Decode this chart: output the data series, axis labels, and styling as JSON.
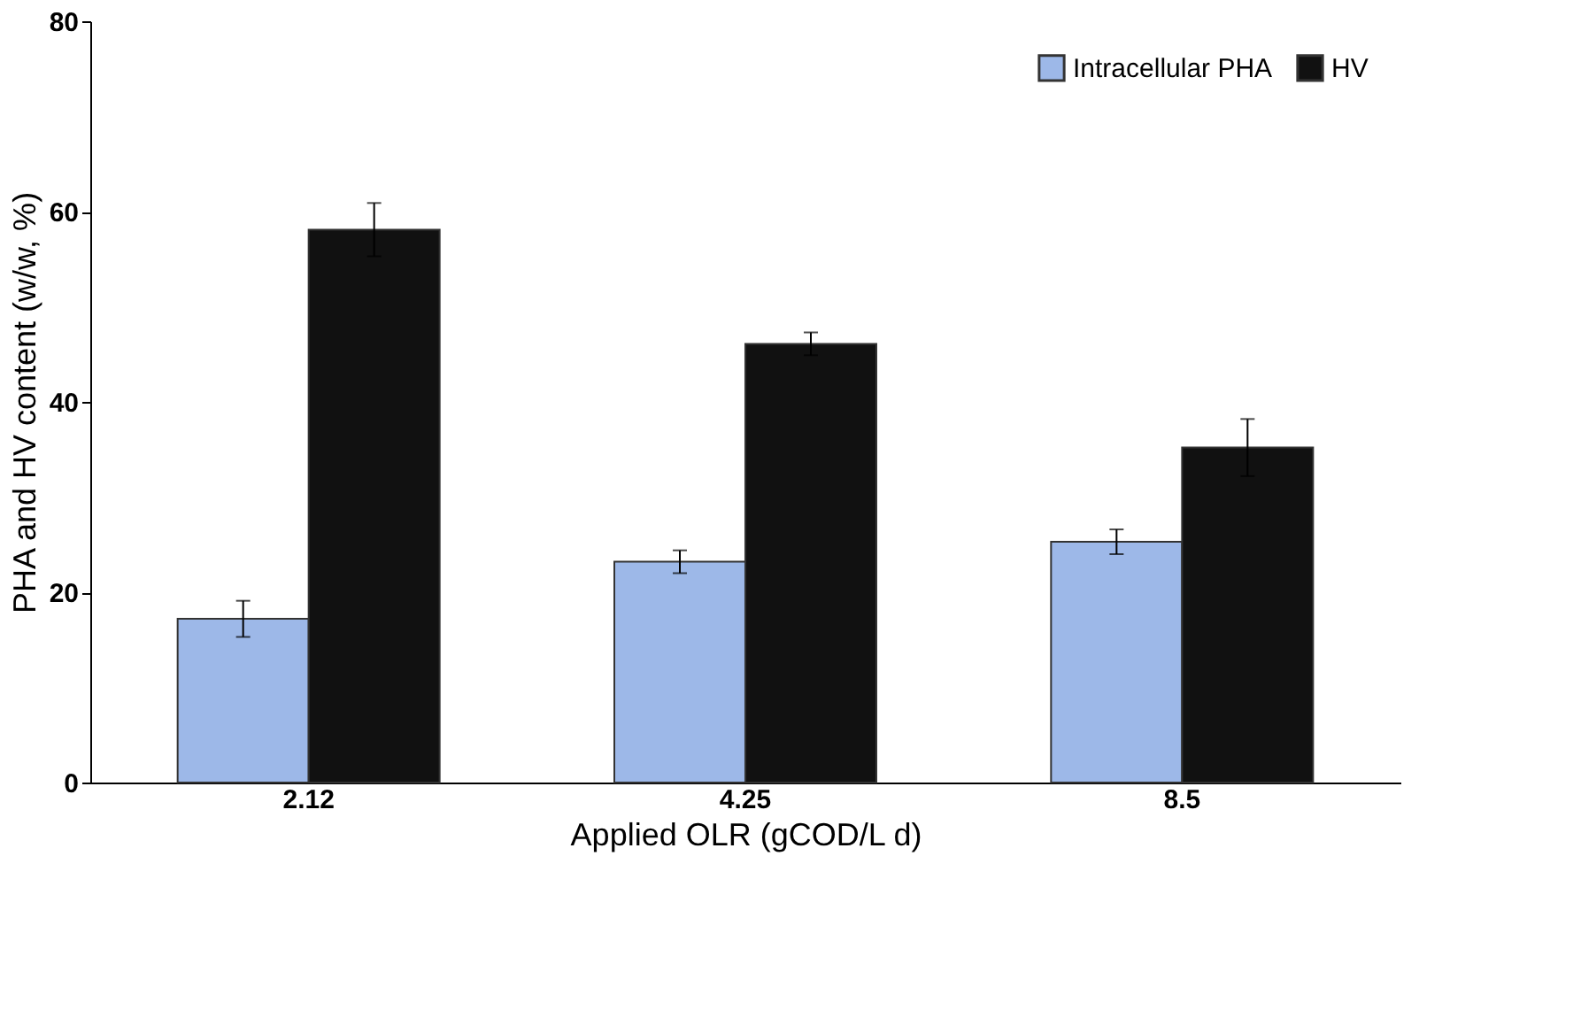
{
  "chart_data": {
    "type": "bar",
    "xlabel": "Applied OLR (gCOD/L d)",
    "ylabel": "PHA and HV content  (w/w, %)",
    "categories": [
      "2.12",
      "4.25",
      "8.5"
    ],
    "series": [
      {
        "name": "Intracellular PHA",
        "color": "#9db8e8",
        "values": [
          17.2,
          23.2,
          25.3
        ],
        "errors": [
          1.9,
          1.2,
          1.3
        ]
      },
      {
        "name": "HV",
        "color": "#111111",
        "values": [
          58.1,
          46.1,
          35.2
        ],
        "errors": [
          2.8,
          1.2,
          3.0
        ]
      }
    ],
    "ylim": [
      0,
      80
    ],
    "yticks": [
      0,
      20,
      40,
      60,
      80
    ],
    "grid": false,
    "legend": "top right"
  }
}
